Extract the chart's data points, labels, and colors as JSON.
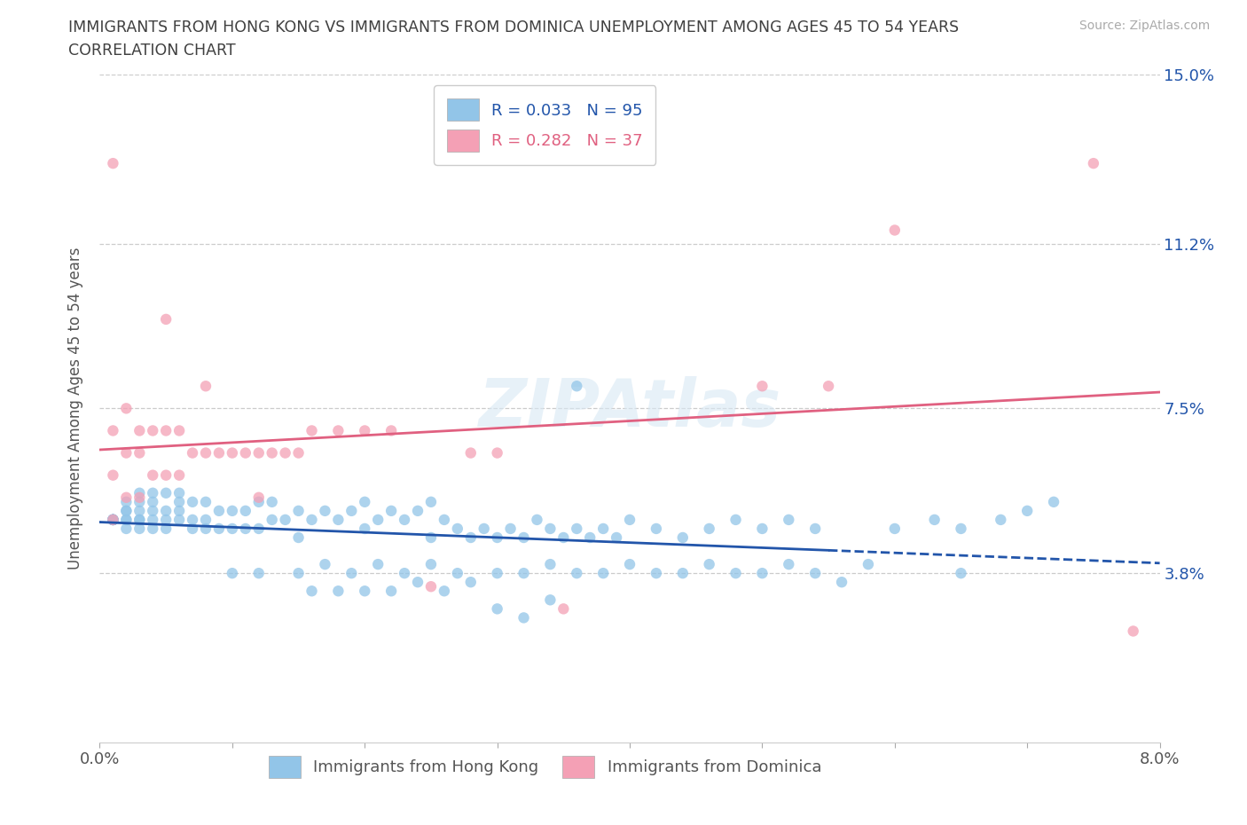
{
  "title_line1": "IMMIGRANTS FROM HONG KONG VS IMMIGRANTS FROM DOMINICA UNEMPLOYMENT AMONG AGES 45 TO 54 YEARS",
  "title_line2": "CORRELATION CHART",
  "source_text": "Source: ZipAtlas.com",
  "ylabel": "Unemployment Among Ages 45 to 54 years",
  "xlim": [
    0.0,
    0.08
  ],
  "ylim": [
    0.0,
    0.15
  ],
  "ytick_positions": [
    0.038,
    0.075,
    0.112,
    0.15
  ],
  "ytick_labels": [
    "3.8%",
    "7.5%",
    "11.2%",
    "15.0%"
  ],
  "xtick_positions": [
    0.0,
    0.01,
    0.02,
    0.03,
    0.04,
    0.05,
    0.06,
    0.07,
    0.08
  ],
  "hk_color": "#92C5E8",
  "dom_color": "#F4A0B5",
  "hk_line_color": "#2255AA",
  "dom_line_color": "#E06080",
  "R_hk": 0.033,
  "N_hk": 95,
  "R_dom": 0.282,
  "N_dom": 37,
  "legend_hk": "Immigrants from Hong Kong",
  "legend_dom": "Immigrants from Dominica",
  "background_color": "#FFFFFF",
  "watermark": "ZIPAtlas",
  "hk_x": [
    0.001,
    0.001,
    0.001,
    0.001,
    0.001,
    0.001,
    0.001,
    0.001,
    0.002,
    0.002,
    0.002,
    0.002,
    0.002,
    0.002,
    0.003,
    0.003,
    0.003,
    0.003,
    0.003,
    0.003,
    0.004,
    0.004,
    0.004,
    0.004,
    0.004,
    0.005,
    0.005,
    0.005,
    0.005,
    0.006,
    0.006,
    0.006,
    0.006,
    0.007,
    0.007,
    0.007,
    0.008,
    0.008,
    0.008,
    0.009,
    0.009,
    0.01,
    0.01,
    0.011,
    0.011,
    0.012,
    0.012,
    0.013,
    0.013,
    0.014,
    0.015,
    0.015,
    0.016,
    0.017,
    0.018,
    0.019,
    0.02,
    0.02,
    0.021,
    0.022,
    0.023,
    0.024,
    0.025,
    0.025,
    0.026,
    0.027,
    0.028,
    0.029,
    0.03,
    0.031,
    0.032,
    0.033,
    0.034,
    0.035,
    0.036,
    0.037,
    0.038,
    0.039,
    0.04,
    0.042,
    0.044,
    0.046,
    0.048,
    0.05,
    0.052,
    0.054,
    0.056,
    0.058,
    0.06,
    0.063,
    0.065,
    0.065,
    0.068,
    0.07,
    0.072
  ],
  "hk_y": [
    0.05,
    0.05,
    0.05,
    0.05,
    0.05,
    0.05,
    0.05,
    0.05,
    0.048,
    0.05,
    0.05,
    0.052,
    0.052,
    0.054,
    0.048,
    0.05,
    0.05,
    0.052,
    0.054,
    0.056,
    0.048,
    0.05,
    0.052,
    0.054,
    0.056,
    0.048,
    0.05,
    0.052,
    0.056,
    0.05,
    0.052,
    0.054,
    0.056,
    0.048,
    0.05,
    0.054,
    0.048,
    0.05,
    0.054,
    0.048,
    0.052,
    0.048,
    0.052,
    0.048,
    0.052,
    0.048,
    0.054,
    0.05,
    0.054,
    0.05,
    0.046,
    0.052,
    0.05,
    0.052,
    0.05,
    0.052,
    0.048,
    0.054,
    0.05,
    0.052,
    0.05,
    0.052,
    0.046,
    0.054,
    0.05,
    0.048,
    0.046,
    0.048,
    0.046,
    0.048,
    0.046,
    0.05,
    0.048,
    0.046,
    0.048,
    0.046,
    0.048,
    0.046,
    0.05,
    0.048,
    0.046,
    0.048,
    0.05,
    0.048,
    0.05,
    0.048,
    0.036,
    0.04,
    0.048,
    0.05,
    0.038,
    0.048,
    0.05,
    0.052,
    0.054
  ],
  "dom_x": [
    0.001,
    0.001,
    0.001,
    0.002,
    0.002,
    0.002,
    0.003,
    0.003,
    0.003,
    0.004,
    0.004,
    0.005,
    0.005,
    0.006,
    0.006,
    0.007,
    0.008,
    0.009,
    0.01,
    0.011,
    0.012,
    0.013,
    0.014,
    0.015,
    0.016,
    0.018,
    0.02,
    0.022,
    0.025,
    0.028,
    0.03,
    0.035,
    0.05,
    0.055,
    0.06,
    0.075,
    0.078
  ],
  "dom_y": [
    0.05,
    0.06,
    0.07,
    0.055,
    0.065,
    0.075,
    0.055,
    0.065,
    0.07,
    0.06,
    0.07,
    0.06,
    0.07,
    0.06,
    0.07,
    0.065,
    0.065,
    0.065,
    0.065,
    0.065,
    0.065,
    0.065,
    0.065,
    0.065,
    0.07,
    0.07,
    0.07,
    0.07,
    0.035,
    0.065,
    0.065,
    0.03,
    0.08,
    0.08,
    0.115,
    0.13,
    0.025
  ]
}
